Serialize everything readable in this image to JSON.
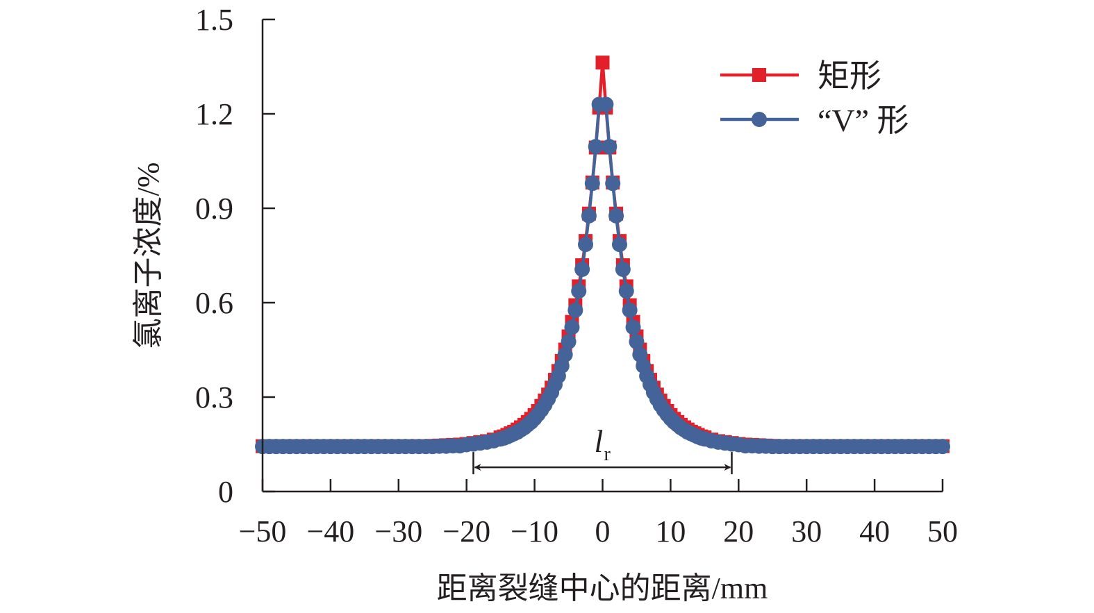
{
  "chart_data": {
    "type": "line",
    "title": "",
    "xlabel": "距离裂缝中心的距离/mm",
    "ylabel": "氯离子浓度/%",
    "xlim": [
      -50,
      50
    ],
    "ylim": [
      0,
      1.5
    ],
    "xticks": [
      -50,
      -40,
      -30,
      -20,
      -10,
      0,
      10,
      20,
      30,
      40,
      50
    ],
    "xtick_labels": [
      "−50",
      "−40",
      "−30",
      "−20",
      "−10",
      "0",
      "10",
      "20",
      "30",
      "40",
      "50"
    ],
    "yticks": [
      0,
      0.3,
      0.6,
      0.9,
      1.2,
      1.5
    ],
    "ytick_labels": [
      "0",
      "0.3",
      "0.6",
      "0.9",
      "1.2",
      "1.5"
    ],
    "grid": false,
    "legend_position": "top-right",
    "x": [
      -50,
      -49,
      -48,
      -47,
      -46,
      -45,
      -44,
      -43,
      -42,
      -41,
      -40,
      -39,
      -38,
      -37,
      -36,
      -35,
      -34,
      -33,
      -32,
      -31,
      -30,
      -29,
      -28,
      -27,
      -26,
      -25,
      -24,
      -23,
      -22,
      -21,
      -20,
      -19,
      -18,
      -17,
      -16,
      -15,
      -14.5,
      -14,
      -13.5,
      -13,
      -12.5,
      -12,
      -11.5,
      -11,
      -10.5,
      -10,
      -9.5,
      -9,
      -8.5,
      -8,
      -7.5,
      -7,
      -6.5,
      -6,
      -5.5,
      -5,
      -4.5,
      -4,
      -3.5,
      -3,
      -2.5,
      -2,
      -1.5,
      -1,
      -0.5,
      0,
      0.5,
      1,
      1.5,
      2,
      2.5,
      3,
      3.5,
      4,
      4.5,
      5,
      5.5,
      6,
      6.5,
      7,
      7.5,
      8,
      8.5,
      9,
      9.5,
      10,
      10.5,
      11,
      11.5,
      12,
      12.5,
      13,
      13.5,
      14,
      14.5,
      15,
      16,
      17,
      18,
      19,
      20,
      21,
      22,
      23,
      24,
      25,
      26,
      27,
      28,
      29,
      30,
      31,
      32,
      33,
      34,
      35,
      36,
      37,
      38,
      39,
      40,
      41,
      42,
      43,
      44,
      45,
      46,
      47,
      48,
      49,
      50
    ],
    "series": [
      {
        "name": "矩形",
        "color": "#e3202a",
        "marker": "square",
        "values": [
          0.144,
          0.144,
          0.144,
          0.144,
          0.144,
          0.144,
          0.144,
          0.144,
          0.144,
          0.144,
          0.144,
          0.144,
          0.144,
          0.144,
          0.144,
          0.144,
          0.144,
          0.144,
          0.144,
          0.144,
          0.144,
          0.144,
          0.144,
          0.144,
          0.144,
          0.145,
          0.146,
          0.147,
          0.148,
          0.149,
          0.151,
          0.154,
          0.157,
          0.16,
          0.165,
          0.172,
          0.175,
          0.18,
          0.185,
          0.19,
          0.197,
          0.204,
          0.212,
          0.221,
          0.231,
          0.243,
          0.256,
          0.272,
          0.289,
          0.308,
          0.33,
          0.355,
          0.383,
          0.415,
          0.451,
          0.493,
          0.539,
          0.592,
          0.652,
          0.719,
          0.796,
          0.883,
          0.982,
          1.093,
          1.22,
          1.363,
          1.22,
          1.093,
          0.982,
          0.883,
          0.796,
          0.719,
          0.652,
          0.592,
          0.539,
          0.493,
          0.451,
          0.415,
          0.383,
          0.355,
          0.33,
          0.308,
          0.289,
          0.272,
          0.256,
          0.243,
          0.231,
          0.221,
          0.212,
          0.204,
          0.197,
          0.19,
          0.185,
          0.18,
          0.175,
          0.172,
          0.165,
          0.16,
          0.157,
          0.154,
          0.151,
          0.149,
          0.148,
          0.147,
          0.146,
          0.145,
          0.144,
          0.144,
          0.144,
          0.144,
          0.144,
          0.144,
          0.144,
          0.144,
          0.144,
          0.144,
          0.144,
          0.144,
          0.144,
          0.144,
          0.144,
          0.144,
          0.144,
          0.144,
          0.144,
          0.144,
          0.144,
          0.144,
          0.144,
          0.144,
          0.144
        ]
      },
      {
        "name": "“V” 形",
        "color": "#436399",
        "marker": "circle",
        "values": [
          0.143,
          0.143,
          0.143,
          0.143,
          0.143,
          0.143,
          0.143,
          0.143,
          0.143,
          0.143,
          0.143,
          0.143,
          0.143,
          0.143,
          0.143,
          0.143,
          0.143,
          0.143,
          0.143,
          0.143,
          0.143,
          0.143,
          0.143,
          0.143,
          0.143,
          0.143,
          0.144,
          0.144,
          0.145,
          0.145,
          0.149,
          0.151,
          0.154,
          0.157,
          0.161,
          0.167,
          0.17,
          0.174,
          0.179,
          0.184,
          0.189,
          0.196,
          0.203,
          0.212,
          0.221,
          0.232,
          0.245,
          0.259,
          0.275,
          0.294,
          0.315,
          0.34,
          0.367,
          0.399,
          0.435,
          0.476,
          0.522,
          0.576,
          0.637,
          0.706,
          0.785,
          0.876,
          0.979,
          1.096,
          1.23,
          null,
          1.23,
          1.096,
          0.979,
          0.876,
          0.785,
          0.706,
          0.637,
          0.576,
          0.522,
          0.476,
          0.435,
          0.399,
          0.367,
          0.34,
          0.315,
          0.294,
          0.275,
          0.259,
          0.245,
          0.232,
          0.221,
          0.212,
          0.203,
          0.196,
          0.189,
          0.184,
          0.179,
          0.174,
          0.17,
          0.167,
          0.161,
          0.157,
          0.154,
          0.151,
          0.149,
          0.145,
          0.145,
          0.144,
          0.144,
          0.143,
          0.143,
          0.143,
          0.143,
          0.143,
          0.143,
          0.143,
          0.143,
          0.143,
          0.143,
          0.143,
          0.143,
          0.143,
          0.143,
          0.143,
          0.143,
          0.143,
          0.143,
          0.143,
          0.143,
          0.143,
          0.143,
          0.143,
          0.143,
          0.143,
          0.143
        ]
      }
    ],
    "annotations": [
      {
        "type": "double-arrow",
        "label_main": "l",
        "label_sub": "r",
        "x_from": -19,
        "x_to": 19,
        "y": 0.077
      }
    ]
  }
}
